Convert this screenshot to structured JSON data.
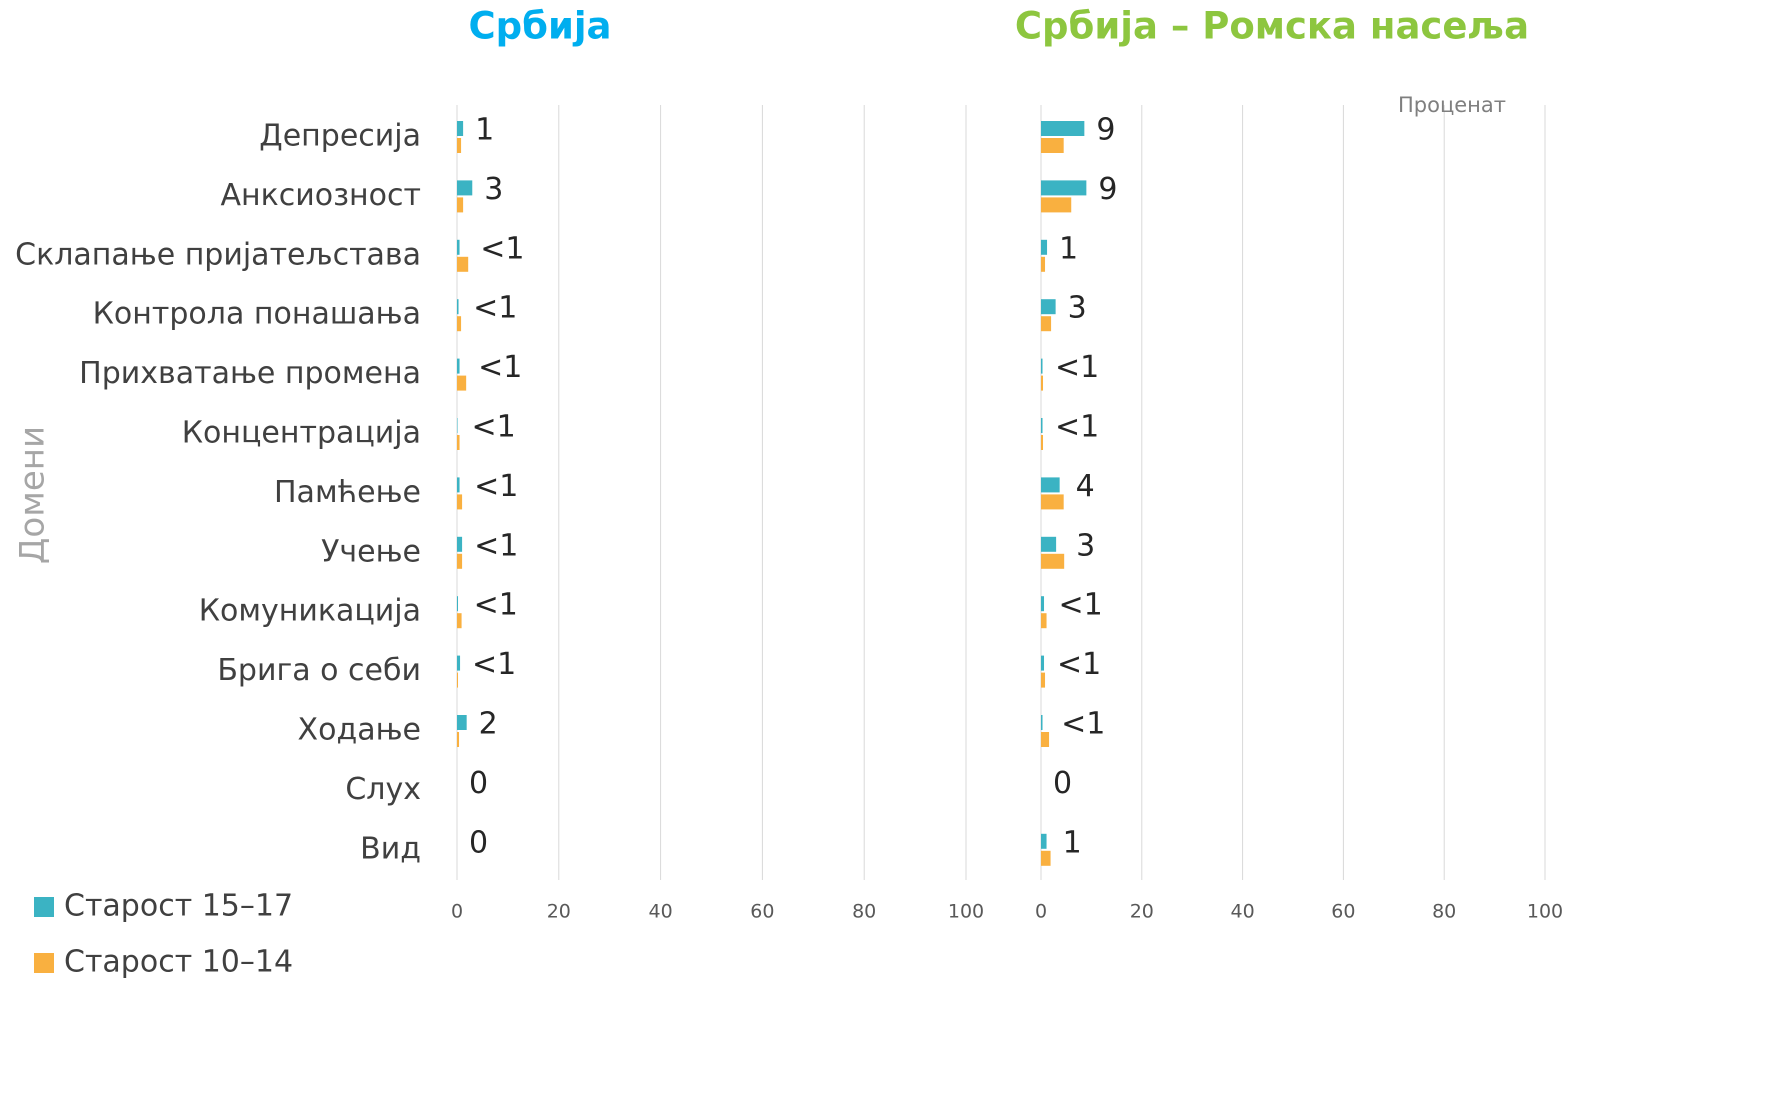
{
  "chart_data": [
    {
      "type": "bar",
      "orientation": "horizontal",
      "title": "Србија",
      "ylabel": "Домени",
      "categories": [
        "Депресија",
        "Анксиозност",
        "Склапање пријатељстава",
        "Контрола понашања",
        "Прихватање промена",
        "Концентрација",
        "Памћење",
        "Учење",
        "Комуникација",
        "Брига о себи",
        "Ходање",
        "Слух",
        "Вид"
      ],
      "series": [
        {
          "name": "Старост 15–17",
          "color": "#3bb3c3",
          "values": [
            1.2,
            3,
            0.5,
            0.3,
            0.5,
            0.1,
            0.5,
            1.0,
            0.2,
            0.6,
            1.9,
            0,
            0
          ]
        },
        {
          "name": "Старост 10–14",
          "color": "#f9b040",
          "values": [
            0.8,
            1.2,
            2.2,
            0.8,
            1.8,
            0.5,
            1.0,
            1.0,
            0.9,
            0.2,
            0.4,
            0,
            0
          ]
        }
      ],
      "annotations": [
        "1",
        "3",
        "<1",
        "<1",
        "<1",
        "<1",
        "<1",
        "<1",
        "<1",
        "<1",
        "2",
        "0",
        "0"
      ],
      "xlim": [
        0,
        100
      ],
      "xticks": [
        0,
        20,
        40,
        60,
        80,
        100
      ],
      "grid": true
    },
    {
      "type": "bar",
      "orientation": "horizontal",
      "title": "Србија – Ромска насеља",
      "xlabel": "Проценат",
      "series": [
        {
          "color": "#3bb3c3",
          "values": [
            8.6,
            9,
            1.2,
            2.9,
            0.3,
            0.3,
            3.7,
            3.0,
            0.6,
            0.6,
            0.3,
            0,
            1.1
          ]
        },
        {
          "color": "#f9b040",
          "values": [
            4.5,
            6,
            0.8,
            2.0,
            0.4,
            0.4,
            4.5,
            4.6,
            1.1,
            0.8,
            1.6,
            0,
            1.9
          ]
        }
      ],
      "annotations": [
        "9",
        "9",
        "1",
        "3",
        "<1",
        "<1",
        "4",
        "3",
        "<1",
        "<1",
        "<1",
        "0",
        "1"
      ],
      "xlim": [
        0,
        100
      ],
      "xticks": [
        0,
        20,
        40,
        60,
        80,
        100
      ],
      "grid": true
    }
  ]
}
